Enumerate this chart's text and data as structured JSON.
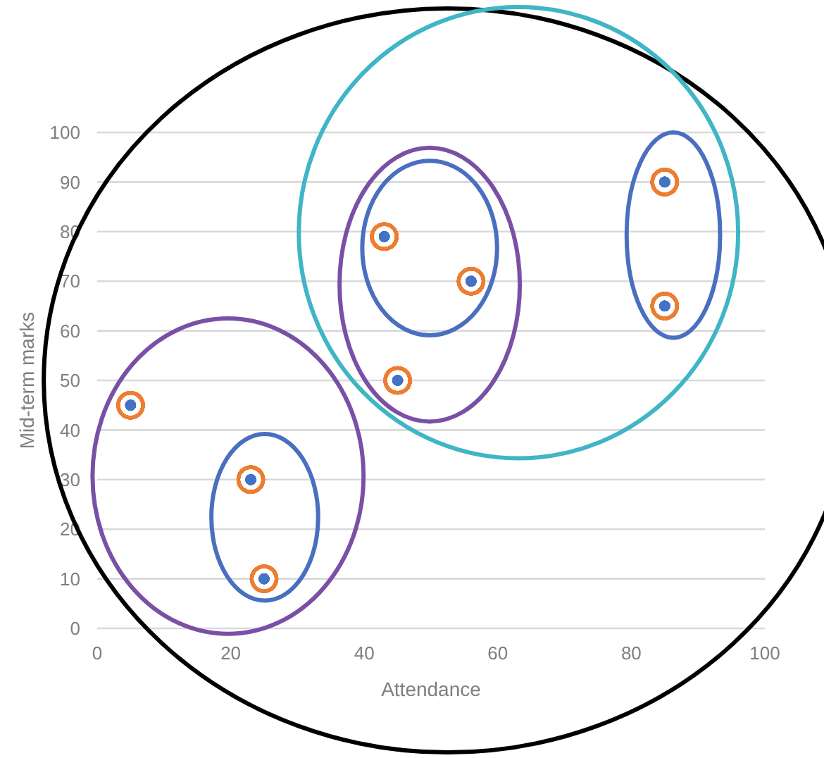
{
  "chart_data": {
    "type": "scatter",
    "xlabel": "Attendance",
    "ylabel": "Mid-term marks",
    "x": [
      5,
      23,
      25,
      43,
      45,
      56,
      85,
      85
    ],
    "series": [
      {
        "color": "#4472c4",
        "values": [
          45,
          30,
          10,
          79,
          50,
          70,
          90,
          65
        ]
      }
    ],
    "xlim": [
      0,
      100
    ],
    "xticks": [
      0,
      20,
      40,
      60,
      80,
      100
    ],
    "ylim": [
      0,
      100
    ],
    "yticks": [
      0,
      10,
      20,
      30,
      40,
      50,
      60,
      70,
      80,
      90,
      100
    ],
    "grid": "y",
    "marker": "circle"
  }
}
